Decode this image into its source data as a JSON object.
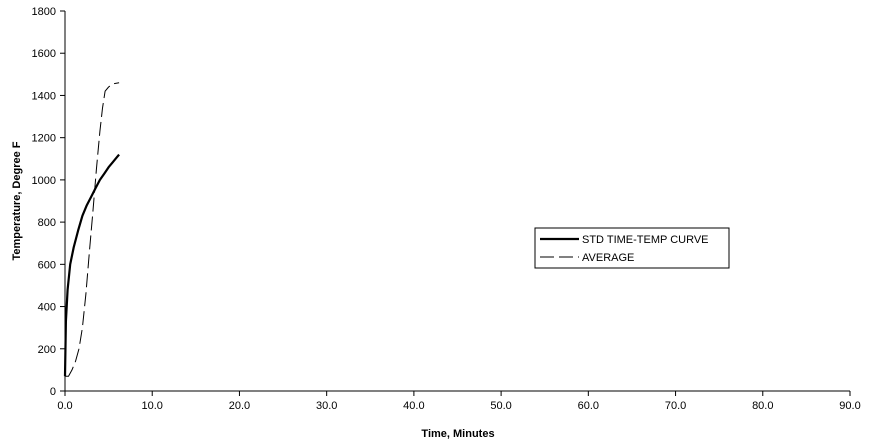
{
  "chart_data": {
    "type": "line",
    "xlabel": "Time, Minutes",
    "ylabel": "Temperature, Degree F",
    "xlim": [
      0,
      90
    ],
    "ylim": [
      0,
      1800
    ],
    "x_ticks": [
      0,
      10,
      20,
      30,
      40,
      50,
      60,
      70,
      80,
      90
    ],
    "x_tick_labels": [
      "0.0",
      "10.0",
      "20.0",
      "30.0",
      "40.0",
      "50.0",
      "60.0",
      "70.0",
      "80.0",
      "90.0"
    ],
    "y_ticks": [
      0,
      200,
      400,
      600,
      800,
      1000,
      1200,
      1400,
      1600,
      1800
    ],
    "y_tick_labels": [
      "0",
      "200",
      "400",
      "600",
      "800",
      "1000",
      "1200",
      "1400",
      "1600",
      "1800"
    ],
    "grid": false,
    "legend_position": "right-center",
    "series": [
      {
        "name": "STD TIME-TEMP CURVE",
        "style": "solid-thick",
        "color": "#000000",
        "x": [
          0,
          0.1,
          0.3,
          0.6,
          1.0,
          1.5,
          2.0,
          2.5,
          3.0,
          3.5,
          4.0,
          4.5,
          5.0,
          5.5,
          6.0,
          6.2
        ],
        "y": [
          70,
          330,
          480,
          600,
          680,
          760,
          830,
          880,
          920,
          960,
          1000,
          1030,
          1060,
          1085,
          1110,
          1120
        ]
      },
      {
        "name": "AVERAGE",
        "style": "dashed",
        "color": "#000000",
        "x": [
          0,
          0.4,
          0.8,
          1.2,
          1.6,
          2.0,
          2.4,
          2.8,
          3.2,
          3.6,
          4.0,
          4.3,
          4.6,
          5.0,
          5.5,
          6.2
        ],
        "y": [
          70,
          70,
          100,
          140,
          200,
          300,
          460,
          660,
          850,
          1050,
          1230,
          1340,
          1420,
          1440,
          1455,
          1460
        ]
      }
    ]
  },
  "colors": {
    "background": "#ffffff",
    "axis": "#000000",
    "line": "#000000"
  }
}
